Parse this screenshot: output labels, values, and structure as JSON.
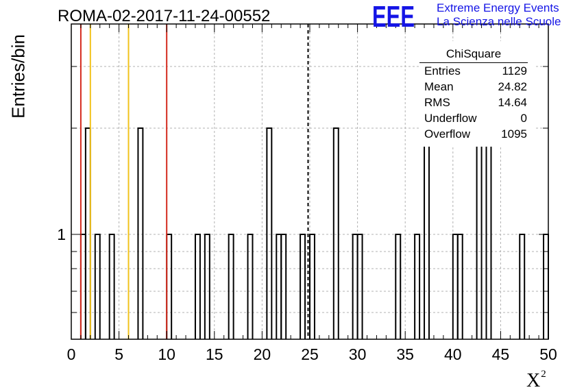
{
  "header": {
    "title": "ROMA-02-2017-11-24-00552",
    "logo_text": "EEE",
    "logo_line1": "Extreme Energy Events",
    "logo_line2": "La Scienza nelle Scuole"
  },
  "stats": {
    "title": "ChiSquare",
    "rows": [
      {
        "key": "Entries",
        "value": "1129"
      },
      {
        "key": "Mean",
        "value": "24.82"
      },
      {
        "key": "RMS",
        "value": "14.64"
      },
      {
        "key": "Underflow",
        "value": "0"
      },
      {
        "key": "Overflow",
        "value": "1095"
      }
    ]
  },
  "colors": {
    "red": "#d42a1d",
    "yellow": "#f2c21b",
    "logo": "#1515e6"
  },
  "chart_data": {
    "type": "bar",
    "title": "ROMA-02-2017-11-24-00552",
    "xlabel": "X",
    "xlabel_superscript": "2",
    "ylabel": "Entries/bin",
    "xlim": [
      0,
      50
    ],
    "ylog": true,
    "xticks": [
      "0",
      "5",
      "10",
      "15",
      "20",
      "25",
      "30",
      "35",
      "40",
      "45",
      "50"
    ],
    "yticks": [
      "1"
    ],
    "grid": true,
    "bin_width": 0.5,
    "bins": [
      {
        "x": 1.0,
        "count": 1
      },
      {
        "x": 1.5,
        "count": 2
      },
      {
        "x": 2.5,
        "count": 1
      },
      {
        "x": 4.0,
        "count": 1
      },
      {
        "x": 7.0,
        "count": 2
      },
      {
        "x": 10.0,
        "count": 1
      },
      {
        "x": 13.0,
        "count": 1
      },
      {
        "x": 14.0,
        "count": 1
      },
      {
        "x": 16.5,
        "count": 1
      },
      {
        "x": 18.5,
        "count": 1
      },
      {
        "x": 20.5,
        "count": 2
      },
      {
        "x": 21.5,
        "count": 1
      },
      {
        "x": 22.0,
        "count": 1
      },
      {
        "x": 24.0,
        "count": 1
      },
      {
        "x": 25.0,
        "count": 1
      },
      {
        "x": 27.5,
        "count": 2
      },
      {
        "x": 29.5,
        "count": 1
      },
      {
        "x": 30.0,
        "count": 1
      },
      {
        "x": 34.0,
        "count": 1
      },
      {
        "x": 36.0,
        "count": 1
      },
      {
        "x": 37.0,
        "count": 2
      },
      {
        "x": 40.0,
        "count": 1
      },
      {
        "x": 40.5,
        "count": 1
      },
      {
        "x": 42.5,
        "count": 2
      },
      {
        "x": 43.5,
        "count": 2
      },
      {
        "x": 47.0,
        "count": 1
      },
      {
        "x": 49.5,
        "count": 1
      }
    ],
    "vertical_lines": [
      {
        "x": 1.0,
        "color": "red",
        "style": "solid"
      },
      {
        "x": 2.0,
        "color": "yellow",
        "style": "solid"
      },
      {
        "x": 6.0,
        "color": "yellow",
        "style": "solid"
      },
      {
        "x": 10.0,
        "color": "red",
        "style": "solid"
      },
      {
        "x": 24.82,
        "color": "black",
        "style": "dashed"
      }
    ]
  }
}
